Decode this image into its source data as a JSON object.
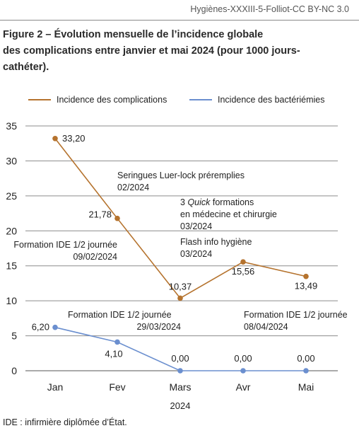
{
  "header": {
    "credit": "Hygiènes-XXXIII-5-Folliot-CC BY-NC 3.0"
  },
  "figure": {
    "title_line1": "Figure 2 – Évolution mensuelle de l’incidence globale",
    "title_line2": "des complications entre janvier et mai 2024 (pour 1000 jours-",
    "title_line3": "cathéter)."
  },
  "footnote": "IDE : infirmière diplômée d’État.",
  "chart_data": {
    "type": "line",
    "categories": [
      "Jan",
      "Fev",
      "Mars",
      "Avr",
      "Mai"
    ],
    "xlabel": "2024",
    "ylabel": "",
    "ylim": [
      0,
      35
    ],
    "yticks": [
      0,
      5,
      10,
      15,
      20,
      25,
      30,
      35
    ],
    "grid": "horizontal",
    "legend_position": "top",
    "series": [
      {
        "name": "Incidence des complications",
        "color": "#b5732e",
        "values": [
          33.2,
          21.78,
          10.37,
          15.56,
          13.49
        ],
        "labels": [
          "33,20",
          "21,78",
          "10,37",
          "15,56",
          "13,49"
        ]
      },
      {
        "name": "Incidence des bactériémies",
        "color": "#6b8fcf",
        "values": [
          6.2,
          4.1,
          0.0,
          0.0,
          0.0
        ],
        "labels": [
          "6,20",
          "4,10",
          "0,00",
          "0,00",
          "0,00"
        ]
      }
    ],
    "annotations": [
      {
        "lines": [
          "Seringues Luer-lock préremplies",
          "02/2024"
        ]
      },
      {
        "lines": [
          "3 Quick formations",
          "en médecine et chirurgie",
          "03/2024"
        ]
      },
      {
        "lines": [
          "Flash info hygiène",
          "03/2024"
        ]
      },
      {
        "lines": [
          "Formation IDE 1/2 journée",
          "09/02/2024"
        ]
      },
      {
        "lines": [
          "Formation IDE 1/2 journée",
          "29/03/2024"
        ]
      },
      {
        "lines": [
          "Formation IDE 1/2 journée",
          "08/04/2024"
        ]
      }
    ]
  }
}
